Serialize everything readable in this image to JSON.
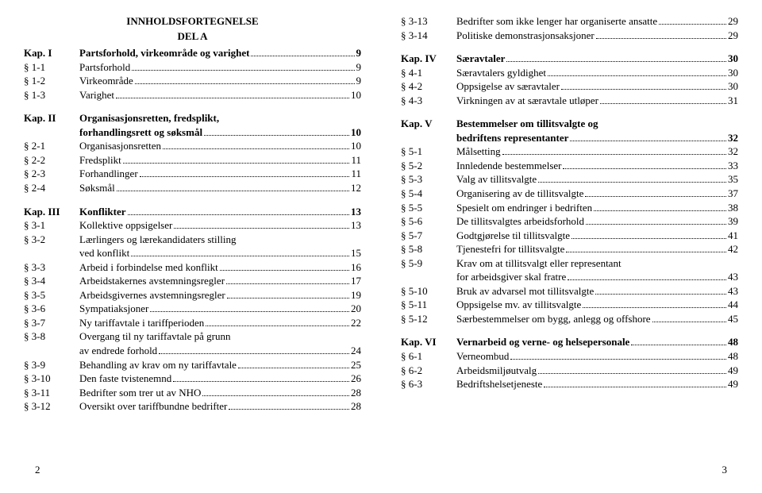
{
  "heading": "INNHOLDSFORTEGNELSE",
  "subheading": "DEL A",
  "page_left": "2",
  "page_right": "3",
  "left": [
    {
      "type": "chapter",
      "ref": "Kap. I",
      "title": "Partsforhold, virkeområde og varighet",
      "page": "9"
    },
    {
      "type": "item",
      "ref": "§ 1-1",
      "title": "Partsforhold",
      "page": "9"
    },
    {
      "type": "item",
      "ref": "§ 1-2",
      "title": "Virkeområde",
      "page": "9"
    },
    {
      "type": "item",
      "ref": "§ 1-3",
      "title": "Varighet",
      "page": "10"
    },
    {
      "type": "spacer"
    },
    {
      "type": "chapter_cont",
      "ref": "Kap. II",
      "title1": "Organisasjonsretten, fredsplikt,",
      "title2": "forhandlingsrett og søksmål",
      "page": "10"
    },
    {
      "type": "item",
      "ref": "§ 2-1",
      "title": "Organisasjonsretten",
      "page": "10"
    },
    {
      "type": "item",
      "ref": "§ 2-2",
      "title": "Fredsplikt",
      "page": "11"
    },
    {
      "type": "item",
      "ref": "§ 2-3",
      "title": "Forhandlinger",
      "page": "11"
    },
    {
      "type": "item",
      "ref": "§ 2-4",
      "title": "Søksmål",
      "page": "12"
    },
    {
      "type": "spacer"
    },
    {
      "type": "chapter",
      "ref": "Kap. III",
      "title": "Konflikter",
      "page": "13"
    },
    {
      "type": "item",
      "ref": "§ 3-1",
      "title": "Kollektive oppsigelser",
      "page": "13"
    },
    {
      "type": "item_cont",
      "ref": "§ 3-2",
      "title1": "Lærlingers og lærekandidaters stilling",
      "title2": "ved konflikt",
      "page": "15"
    },
    {
      "type": "item",
      "ref": "§ 3-3",
      "title": "Arbeid i forbindelse med konflikt",
      "page": "16"
    },
    {
      "type": "item",
      "ref": "§ 3-4",
      "title": "Arbeidstakernes avstemningsregler",
      "page": "17"
    },
    {
      "type": "item",
      "ref": "§ 3-5",
      "title": "Arbeidsgivernes avstemningsregler",
      "page": "19"
    },
    {
      "type": "item",
      "ref": "§ 3-6",
      "title": "Sympatiaksjoner",
      "page": "20"
    },
    {
      "type": "item",
      "ref": "§ 3-7",
      "title": "Ny tariffavtale i tariffperioden",
      "page": "22"
    },
    {
      "type": "item_cont",
      "ref": "§ 3-8",
      "title1": "Overgang til ny tariffavtale på grunn",
      "title2": "av endrede forhold",
      "page": "24"
    },
    {
      "type": "item",
      "ref": "§ 3-9",
      "title": "Behandling av krav om ny tariffavtale",
      "page": "25"
    },
    {
      "type": "item",
      "ref": "§ 3-10",
      "title": "Den faste tvistenemnd",
      "page": "26"
    },
    {
      "type": "item",
      "ref": "§ 3-11",
      "title": "Bedrifter som trer ut av NHO",
      "page": "28"
    },
    {
      "type": "item",
      "ref": "§ 3-12",
      "title": "Oversikt over tariffbundne bedrifter",
      "page": "28"
    }
  ],
  "right": [
    {
      "type": "item",
      "ref": "§ 3-13",
      "title": "Bedrifter som ikke lenger har organiserte ansatte",
      "page": "29"
    },
    {
      "type": "item",
      "ref": "§ 3-14",
      "title": "Politiske demonstrasjonsaksjoner",
      "page": "29"
    },
    {
      "type": "spacer"
    },
    {
      "type": "chapter",
      "ref": "Kap. IV",
      "title": "Særavtaler",
      "page": "30"
    },
    {
      "type": "item",
      "ref": "§ 4-1",
      "title": "Særavtalers gyldighet",
      "page": "30"
    },
    {
      "type": "item",
      "ref": "§ 4-2",
      "title": "Oppsigelse av særavtaler",
      "page": "30"
    },
    {
      "type": "item",
      "ref": "§ 4-3",
      "title": "Virkningen av at særavtale utløper",
      "page": "31"
    },
    {
      "type": "spacer"
    },
    {
      "type": "chapter_cont",
      "ref": "Kap. V",
      "title1": "Bestemmelser om tillitsvalgte og",
      "title2": "bedriftens representanter",
      "page": "32"
    },
    {
      "type": "item",
      "ref": "§ 5-1",
      "title": "Målsetting",
      "page": "32"
    },
    {
      "type": "item",
      "ref": "§ 5-2",
      "title": "Innledende bestemmelser",
      "page": "33"
    },
    {
      "type": "item",
      "ref": "§ 5-3",
      "title": "Valg av tillitsvalgte",
      "page": "35"
    },
    {
      "type": "item",
      "ref": "§ 5-4",
      "title": "Organisering av de tillitsvalgte",
      "page": "37"
    },
    {
      "type": "item",
      "ref": "§ 5-5",
      "title": "Spesielt om endringer i bedriften",
      "page": "38"
    },
    {
      "type": "item",
      "ref": "§ 5-6",
      "title": "De tillitsvalgtes arbeidsforhold",
      "page": "39"
    },
    {
      "type": "item",
      "ref": "§ 5-7",
      "title": "Godtgjørelse til tillitsvalgte",
      "page": "41"
    },
    {
      "type": "item",
      "ref": "§ 5-8",
      "title": "Tjenestefri for tillitsvalgte",
      "page": "42"
    },
    {
      "type": "item_cont",
      "ref": "§ 5-9",
      "title1": "Krav om at tillitsvalgt eller representant",
      "title2": "for arbeidsgiver skal fratre",
      "page": "43"
    },
    {
      "type": "item",
      "ref": "§ 5-10",
      "title": "Bruk av advarsel mot tillitsvalgte",
      "page": "43"
    },
    {
      "type": "item",
      "ref": "§ 5-11",
      "title": "Oppsigelse mv. av tillitsvalgte",
      "page": "44"
    },
    {
      "type": "item",
      "ref": "§ 5-12",
      "title": "Særbestemmelser om bygg, anlegg og offshore",
      "page": "45"
    },
    {
      "type": "spacer"
    },
    {
      "type": "chapter",
      "ref": "Kap. VI",
      "title": "Vernarbeid og verne- og helsepersonale",
      "page": "48"
    },
    {
      "type": "item",
      "ref": "§ 6-1",
      "title": "Verneombud",
      "page": "48"
    },
    {
      "type": "item",
      "ref": "§ 6-2",
      "title": "Arbeidsmiljøutvalg",
      "page": "49"
    },
    {
      "type": "item",
      "ref": "§ 6-3",
      "title": "Bedriftshelsetjeneste",
      "page": "49"
    }
  ]
}
